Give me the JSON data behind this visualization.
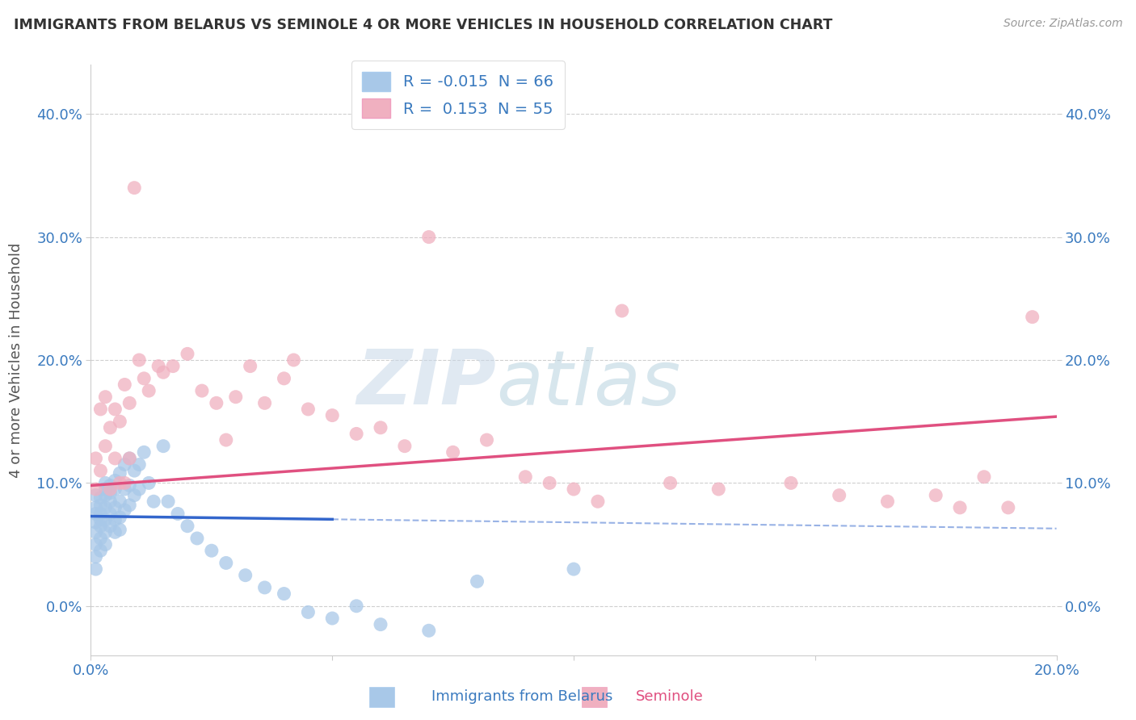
{
  "title": "IMMIGRANTS FROM BELARUS VS SEMINOLE 4 OR MORE VEHICLES IN HOUSEHOLD CORRELATION CHART",
  "source": "Source: ZipAtlas.com",
  "xlabel_blue": "Immigrants from Belarus",
  "xlabel_pink": "Seminole",
  "ylabel": "4 or more Vehicles in Household",
  "xlim": [
    0.0,
    0.2
  ],
  "ylim": [
    -0.04,
    0.44
  ],
  "xticks": [
    0.0,
    0.05,
    0.1,
    0.15,
    0.2
  ],
  "xtick_labels": [
    "0.0%",
    "",
    "",
    "",
    "20.0%"
  ],
  "yticks": [
    0.0,
    0.1,
    0.2,
    0.3,
    0.4
  ],
  "ytick_labels": [
    "0.0%",
    "10.0%",
    "20.0%",
    "30.0%",
    "40.0%"
  ],
  "blue_color": "#a8c8e8",
  "pink_color": "#f0b0c0",
  "blue_line_color": "#3366cc",
  "pink_line_color": "#e05080",
  "blue_R": -0.015,
  "blue_N": 66,
  "pink_R": 0.153,
  "pink_N": 55,
  "watermark": "ZIPatlas",
  "blue_intercept": 0.073,
  "blue_slope": -0.05,
  "pink_intercept": 0.098,
  "pink_slope": 0.28,
  "blue_line_end_solid": 0.05,
  "blue_points_x": [
    0.001,
    0.001,
    0.001,
    0.001,
    0.001,
    0.001,
    0.001,
    0.001,
    0.002,
    0.002,
    0.002,
    0.002,
    0.002,
    0.002,
    0.002,
    0.003,
    0.003,
    0.003,
    0.003,
    0.003,
    0.003,
    0.003,
    0.004,
    0.004,
    0.004,
    0.004,
    0.004,
    0.005,
    0.005,
    0.005,
    0.005,
    0.005,
    0.006,
    0.006,
    0.006,
    0.006,
    0.007,
    0.007,
    0.007,
    0.008,
    0.008,
    0.008,
    0.009,
    0.009,
    0.01,
    0.01,
    0.011,
    0.012,
    0.013,
    0.015,
    0.016,
    0.018,
    0.02,
    0.022,
    0.025,
    0.028,
    0.032,
    0.036,
    0.04,
    0.045,
    0.05,
    0.055,
    0.06,
    0.07,
    0.08,
    0.1
  ],
  "blue_points_y": [
    0.068,
    0.075,
    0.08,
    0.09,
    0.06,
    0.05,
    0.04,
    0.03,
    0.075,
    0.082,
    0.088,
    0.07,
    0.065,
    0.055,
    0.045,
    0.08,
    0.09,
    0.095,
    0.1,
    0.07,
    0.06,
    0.05,
    0.085,
    0.092,
    0.098,
    0.075,
    0.065,
    0.095,
    0.102,
    0.08,
    0.07,
    0.06,
    0.108,
    0.085,
    0.072,
    0.062,
    0.115,
    0.095,
    0.078,
    0.12,
    0.098,
    0.082,
    0.11,
    0.09,
    0.115,
    0.095,
    0.125,
    0.1,
    0.085,
    0.13,
    0.085,
    0.075,
    0.065,
    0.055,
    0.045,
    0.035,
    0.025,
    0.015,
    0.01,
    -0.005,
    -0.01,
    0.0,
    -0.015,
    -0.02,
    0.02,
    0.03
  ],
  "pink_points_x": [
    0.001,
    0.001,
    0.002,
    0.002,
    0.003,
    0.003,
    0.004,
    0.004,
    0.005,
    0.005,
    0.006,
    0.006,
    0.007,
    0.007,
    0.008,
    0.008,
    0.009,
    0.01,
    0.011,
    0.012,
    0.014,
    0.015,
    0.017,
    0.02,
    0.023,
    0.026,
    0.028,
    0.03,
    0.033,
    0.036,
    0.04,
    0.042,
    0.045,
    0.05,
    0.055,
    0.06,
    0.065,
    0.07,
    0.075,
    0.082,
    0.09,
    0.095,
    0.1,
    0.105,
    0.11,
    0.12,
    0.13,
    0.145,
    0.155,
    0.165,
    0.175,
    0.18,
    0.185,
    0.19,
    0.195
  ],
  "pink_points_y": [
    0.095,
    0.12,
    0.11,
    0.16,
    0.13,
    0.17,
    0.145,
    0.095,
    0.16,
    0.12,
    0.15,
    0.1,
    0.18,
    0.1,
    0.165,
    0.12,
    0.34,
    0.2,
    0.185,
    0.175,
    0.195,
    0.19,
    0.195,
    0.205,
    0.175,
    0.165,
    0.135,
    0.17,
    0.195,
    0.165,
    0.185,
    0.2,
    0.16,
    0.155,
    0.14,
    0.145,
    0.13,
    0.3,
    0.125,
    0.135,
    0.105,
    0.1,
    0.095,
    0.085,
    0.24,
    0.1,
    0.095,
    0.1,
    0.09,
    0.085,
    0.09,
    0.08,
    0.105,
    0.08,
    0.235
  ]
}
